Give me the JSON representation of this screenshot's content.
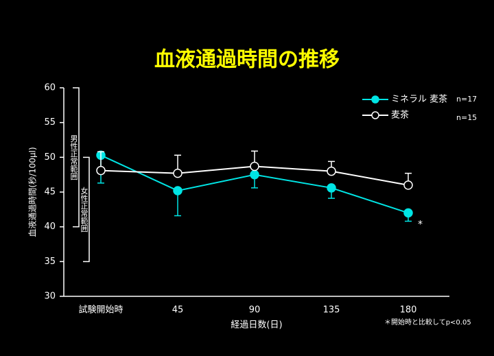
{
  "chart_data": {
    "type": "line",
    "title": "血液通過時間の推移",
    "y_label": "血液通過時間(秒/100μl)",
    "x_label": "経過日数(日)",
    "footnote": "＊開始時と比較してp<0.05",
    "annotation": "*",
    "categories": [
      "試験開始時",
      "45",
      "90",
      "135",
      "180"
    ],
    "ylim": [
      30,
      60
    ],
    "yticks": [
      30,
      35,
      40,
      45,
      50,
      55,
      60
    ],
    "ranges": [
      {
        "label": "男性正常範囲",
        "from": 40,
        "to": 60
      },
      {
        "label": "女性正常範囲",
        "from": 35,
        "to": 50
      }
    ],
    "series": [
      {
        "name": "ミネラル 麦茶",
        "n": "n=17",
        "color": "#00e5e5",
        "marker": "filled",
        "error_side": "lower",
        "values": [
          50.3,
          45.2,
          47.5,
          45.6,
          42.0
        ],
        "errors": [
          4.0,
          3.6,
          1.9,
          1.5,
          1.2
        ]
      },
      {
        "name": "麦茶",
        "n": "n=15",
        "color": "#ffffff",
        "marker": "open",
        "error_side": "upper",
        "values": [
          48.1,
          47.7,
          48.7,
          48.0,
          46.0
        ],
        "errors": [
          2.7,
          2.6,
          2.2,
          1.4,
          1.7
        ]
      }
    ]
  }
}
